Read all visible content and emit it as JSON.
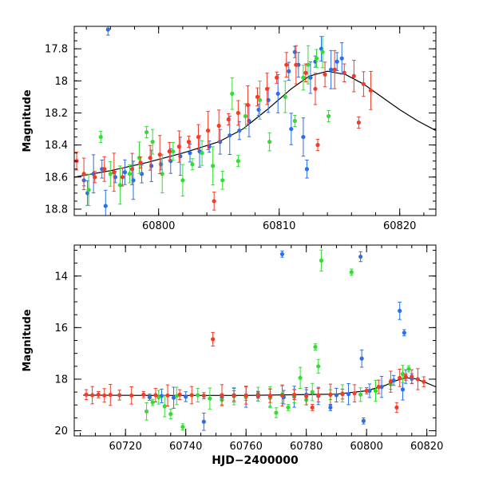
{
  "chart_data": [
    {
      "type": "scatter",
      "panel": "top",
      "title": "",
      "xlabel": "",
      "ylabel": "Magnitude",
      "xlim": [
        60793,
        60823
      ],
      "ylim": [
        18.84,
        17.66
      ],
      "y_inverted": true,
      "grid": false,
      "xticks": [
        60800,
        60810,
        60820
      ],
      "yticks": [
        17.8,
        18,
        18.2,
        18.4,
        18.6,
        18.8
      ],
      "ytick_labels": [
        "17.8",
        "18",
        "18.2",
        "18.4",
        "18.6",
        "18.8"
      ],
      "model_curve": [
        [
          60793,
          18.6
        ],
        [
          60796,
          18.56
        ],
        [
          60799,
          18.51
        ],
        [
          60802,
          18.45
        ],
        [
          60805,
          18.38
        ],
        [
          60807,
          18.3
        ],
        [
          60809,
          18.18
        ],
        [
          60811,
          18.05
        ],
        [
          60812.5,
          17.97
        ],
        [
          60814,
          17.94
        ],
        [
          60815.5,
          17.96
        ],
        [
          60817,
          18.02
        ],
        [
          60818.5,
          18.1
        ],
        [
          60820,
          18.18
        ],
        [
          60821.5,
          18.25
        ],
        [
          60823,
          18.31
        ]
      ],
      "series": [
        {
          "color": "#2a6ef0",
          "points": [
            [
              60793.8,
              18.62
            ],
            [
              60794.1,
              18.7
            ],
            [
              60794.6,
              18.58
            ],
            [
              60795.3,
              18.55
            ],
            [
              60795.6,
              18.78
            ],
            [
              60796.4,
              18.6
            ],
            [
              60797.2,
              18.57
            ],
            [
              60797.9,
              18.62
            ],
            [
              60798.6,
              18.58
            ],
            [
              60799.4,
              18.53
            ],
            [
              60800.2,
              18.52
            ],
            [
              60801.0,
              18.5
            ],
            [
              60801.8,
              18.47
            ],
            [
              60802.6,
              18.45
            ],
            [
              60803.4,
              18.44
            ],
            [
              60804.2,
              18.41
            ],
            [
              60805.1,
              18.38
            ],
            [
              60805.9,
              18.34
            ],
            [
              60806.7,
              18.31
            ],
            [
              60807.5,
              18.25
            ],
            [
              60808.3,
              18.18
            ],
            [
              60809.1,
              18.12
            ],
            [
              60809.9,
              18.08
            ],
            [
              60810.8,
              17.94
            ],
            [
              60811.0,
              18.3
            ],
            [
              60811.3,
              17.82
            ],
            [
              60811.6,
              17.9
            ],
            [
              60812.0,
              18.35
            ],
            [
              60812.3,
              18.55
            ],
            [
              60812.6,
              17.98
            ],
            [
              60813.0,
              17.88
            ],
            [
              60813.5,
              17.8
            ],
            [
              60814.3,
              17.93
            ],
            [
              60814.8,
              17.88
            ],
            [
              60815.2,
              17.86
            ],
            [
              60795.8,
              17.68
            ]
          ]
        },
        {
          "color": "#33dd33",
          "points": [
            [
              60794.2,
              18.68
            ],
            [
              60795.2,
              18.35
            ],
            [
              60796.0,
              18.58
            ],
            [
              60796.8,
              18.65
            ],
            [
              60797.6,
              18.58
            ],
            [
              60798.4,
              18.48
            ],
            [
              60799.0,
              18.32
            ],
            [
              60799.5,
              18.38
            ],
            [
              60800.3,
              18.58
            ],
            [
              60801.2,
              18.44
            ],
            [
              60802.0,
              18.62
            ],
            [
              60802.8,
              18.52
            ],
            [
              60803.6,
              18.45
            ],
            [
              60804.5,
              18.53
            ],
            [
              60805.3,
              18.62
            ],
            [
              60806.1,
              18.08
            ],
            [
              60806.6,
              18.5
            ],
            [
              60807.2,
              18.22
            ],
            [
              60808.4,
              18.12
            ],
            [
              60809.2,
              18.38
            ],
            [
              60810.5,
              18.1
            ],
            [
              60811.3,
              18.25
            ],
            [
              60812.0,
              17.98
            ],
            [
              60812.4,
              17.9
            ],
            [
              60813.1,
              17.86
            ],
            [
              60813.6,
              17.82
            ],
            [
              60814.1,
              18.22
            ]
          ]
        },
        {
          "color": "#f03c28",
          "points": [
            [
              60793.2,
              18.5
            ],
            [
              60793.8,
              18.58
            ],
            [
              60794.7,
              18.6
            ],
            [
              60795.5,
              18.55
            ],
            [
              60796.3,
              18.57
            ],
            [
              60797.0,
              18.6
            ],
            [
              60797.8,
              18.55
            ],
            [
              60798.5,
              18.51
            ],
            [
              60799.3,
              18.48
            ],
            [
              60800.1,
              18.46
            ],
            [
              60800.9,
              18.44
            ],
            [
              60801.7,
              18.41
            ],
            [
              60802.5,
              18.38
            ],
            [
              60803.3,
              18.35
            ],
            [
              60804.1,
              18.31
            ],
            [
              60804.6,
              18.75
            ],
            [
              60805.0,
              18.28
            ],
            [
              60805.8,
              18.24
            ],
            [
              60806.6,
              18.2
            ],
            [
              60807.4,
              18.15
            ],
            [
              60808.2,
              18.1
            ],
            [
              60809.0,
              18.05
            ],
            [
              60809.8,
              17.98
            ],
            [
              60810.6,
              17.9
            ],
            [
              60811.4,
              17.9
            ],
            [
              60812.2,
              17.95
            ],
            [
              60813.0,
              18.05
            ],
            [
              60813.2,
              18.4
            ],
            [
              60813.8,
              17.96
            ],
            [
              60814.6,
              17.93
            ],
            [
              60815.4,
              17.95
            ],
            [
              60816.2,
              17.97
            ],
            [
              60816.6,
              18.26
            ],
            [
              60817.0,
              18.02
            ],
            [
              60817.6,
              18.06
            ]
          ]
        }
      ]
    },
    {
      "type": "scatter",
      "panel": "bottom",
      "title": "",
      "xlabel": "HJD−2400000",
      "ylabel": "Magnitude",
      "xlim": [
        60703,
        60823
      ],
      "ylim": [
        20.2,
        12.8
      ],
      "y_inverted": true,
      "grid": false,
      "xticks": [
        60720,
        60740,
        60760,
        60780,
        60800,
        60820
      ],
      "yticks": [
        14,
        16,
        18,
        20
      ],
      "ytick_labels": [
        "14",
        "16",
        "18",
        "20"
      ],
      "model_curve": [
        [
          60706,
          18.62
        ],
        [
          60730,
          18.63
        ],
        [
          60760,
          18.63
        ],
        [
          60790,
          18.58
        ],
        [
          60800,
          18.45
        ],
        [
          60806,
          18.25
        ],
        [
          60810,
          18.05
        ],
        [
          60813,
          17.95
        ],
        [
          60816,
          17.98
        ],
        [
          60819,
          18.1
        ],
        [
          60823,
          18.3
        ]
      ],
      "series": [
        {
          "color": "#2a6ef0",
          "points": [
            [
              60728,
              18.7
            ],
            [
              60732,
              18.65
            ],
            [
              60736,
              18.72
            ],
            [
              60740,
              18.68
            ],
            [
              60746,
              19.65
            ],
            [
              60752,
              18.7
            ],
            [
              60756,
              18.62
            ],
            [
              60760,
              18.68
            ],
            [
              60764,
              18.66
            ],
            [
              60768,
              18.72
            ],
            [
              60772,
              13.15
            ],
            [
              60772.5,
              18.7
            ],
            [
              60776,
              18.68
            ],
            [
              60780,
              18.6
            ],
            [
              60784,
              18.65
            ],
            [
              60788,
              19.1
            ],
            [
              60790,
              18.62
            ],
            [
              60794,
              18.58
            ],
            [
              60798,
              13.25
            ],
            [
              60798.4,
              17.2
            ],
            [
              60799,
              19.62
            ],
            [
              60801,
              18.45
            ],
            [
              60805,
              18.3
            ],
            [
              60809,
              18.05
            ],
            [
              60811,
              15.35
            ],
            [
              60812.5,
              16.2
            ],
            [
              60813,
              17.9
            ],
            [
              60812,
              18.4
            ],
            [
              60815,
              17.98
            ]
          ]
        },
        {
          "color": "#33dd33",
          "points": [
            [
              60727,
              19.25
            ],
            [
              60729,
              18.9
            ],
            [
              60731,
              18.7
            ],
            [
              60733,
              19.05
            ],
            [
              60735,
              19.35
            ],
            [
              60737,
              18.65
            ],
            [
              60739,
              19.85
            ],
            [
              60744,
              18.62
            ],
            [
              60748,
              18.75
            ],
            [
              60752,
              18.8
            ],
            [
              60756,
              18.66
            ],
            [
              60760,
              18.7
            ],
            [
              60764,
              18.58
            ],
            [
              60768,
              18.7
            ],
            [
              60770,
              19.3
            ],
            [
              60772,
              18.6
            ],
            [
              60774,
              19.1
            ],
            [
              60776,
              18.65
            ],
            [
              60778,
              17.95
            ],
            [
              60780,
              18.8
            ],
            [
              60782,
              18.5
            ],
            [
              60783,
              16.75
            ],
            [
              60784,
              17.5
            ],
            [
              60785,
              13.4
            ],
            [
              60788,
              18.6
            ],
            [
              60792,
              18.55
            ],
            [
              60795,
              13.85
            ],
            [
              60798,
              18.6
            ],
            [
              60803,
              18.45
            ],
            [
              60808,
              18.2
            ],
            [
              60812,
              17.8
            ],
            [
              60814,
              17.6
            ]
          ]
        },
        {
          "color": "#f03c28",
          "points": [
            [
              60707,
              18.6
            ],
            [
              60709,
              18.62
            ],
            [
              60711,
              18.6
            ],
            [
              60713,
              18.63
            ],
            [
              60715,
              18.61
            ],
            [
              60718,
              18.62
            ],
            [
              60722,
              18.63
            ],
            [
              60726,
              18.6
            ],
            [
              60730,
              18.62
            ],
            [
              60734,
              18.63
            ],
            [
              60738,
              18.6
            ],
            [
              60742,
              18.62
            ],
            [
              60746,
              18.64
            ],
            [
              60749,
              16.45
            ],
            [
              60752,
              18.62
            ],
            [
              60756,
              18.64
            ],
            [
              60760,
              18.63
            ],
            [
              60764,
              18.62
            ],
            [
              60768,
              18.64
            ],
            [
              60772,
              18.63
            ],
            [
              60776,
              18.6
            ],
            [
              60780,
              18.66
            ],
            [
              60782,
              19.1
            ],
            [
              60784,
              18.62
            ],
            [
              60788,
              18.6
            ],
            [
              60792,
              18.58
            ],
            [
              60796,
              18.55
            ],
            [
              60800,
              18.45
            ],
            [
              60804,
              18.3
            ],
            [
              60808,
              18.1
            ],
            [
              60810,
              19.1
            ],
            [
              60811,
              17.95
            ],
            [
              60813,
              17.92
            ],
            [
              60815,
              17.9
            ],
            [
              60817,
              18.0
            ],
            [
              60819,
              18.1
            ]
          ]
        }
      ]
    }
  ]
}
